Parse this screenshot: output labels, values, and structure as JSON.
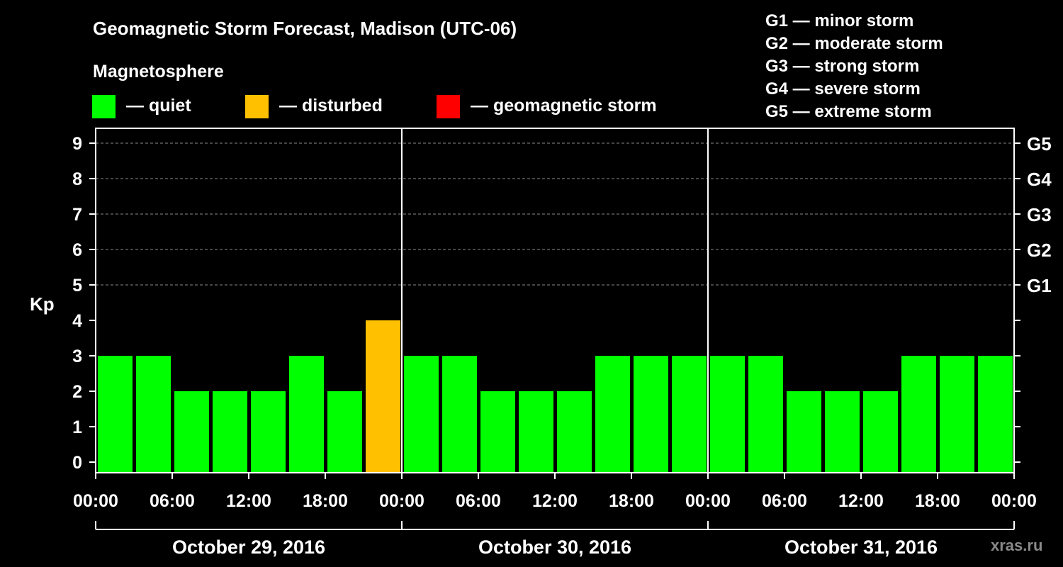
{
  "title": "Geomagnetic Storm Forecast, Madison (UTC-06)",
  "legend": {
    "heading": "Magnetosphere",
    "items": [
      {
        "label": "— quiet",
        "color": "#00ff00"
      },
      {
        "label": "— disturbed",
        "color": "#ffc000"
      },
      {
        "label": "— geomagnetic storm",
        "color": "#ff0000"
      }
    ]
  },
  "storm_scale": [
    "G1 — minor storm",
    "G2 — moderate storm",
    "G3 — strong storm",
    "G4 — severe storm",
    "G5 — extreme storm"
  ],
  "watermark": "xras.ru",
  "chart_data": {
    "type": "bar",
    "title": "Geomagnetic Storm Forecast, Madison (UTC-06)",
    "ylabel": "Kp",
    "xlabel": "",
    "ylim": [
      0,
      9
    ],
    "yticks": [
      "0",
      "1",
      "2",
      "3",
      "4",
      "5",
      "6",
      "7",
      "8",
      "9"
    ],
    "right_ticks": [
      {
        "kp": 5,
        "label": "G1"
      },
      {
        "kp": 6,
        "label": "G2"
      },
      {
        "kp": 7,
        "label": "G3"
      },
      {
        "kp": 8,
        "label": "G4"
      },
      {
        "kp": 9,
        "label": "G5"
      }
    ],
    "grid": "dashed horizontal at Kp 5-9",
    "legend_placement": "top",
    "days": [
      "October 29, 2016",
      "October 30, 2016",
      "October 31, 2016"
    ],
    "time_ticks": [
      "00:00",
      "06:00",
      "12:00",
      "18:00",
      "00:00",
      "06:00",
      "12:00",
      "18:00",
      "00:00",
      "06:00",
      "12:00",
      "18:00",
      "00:00"
    ],
    "interval_hours": 3,
    "values": [
      3,
      3,
      2,
      2,
      2,
      3,
      2,
      4,
      3,
      3,
      2,
      2,
      2,
      3,
      3,
      3,
      3,
      3,
      2,
      2,
      2,
      3,
      3,
      3
    ],
    "colors": [
      "#00ff00",
      "#00ff00",
      "#00ff00",
      "#00ff00",
      "#00ff00",
      "#00ff00",
      "#00ff00",
      "#ffc000",
      "#00ff00",
      "#00ff00",
      "#00ff00",
      "#00ff00",
      "#00ff00",
      "#00ff00",
      "#00ff00",
      "#00ff00",
      "#00ff00",
      "#00ff00",
      "#00ff00",
      "#00ff00",
      "#00ff00",
      "#00ff00",
      "#00ff00",
      "#00ff00"
    ]
  }
}
